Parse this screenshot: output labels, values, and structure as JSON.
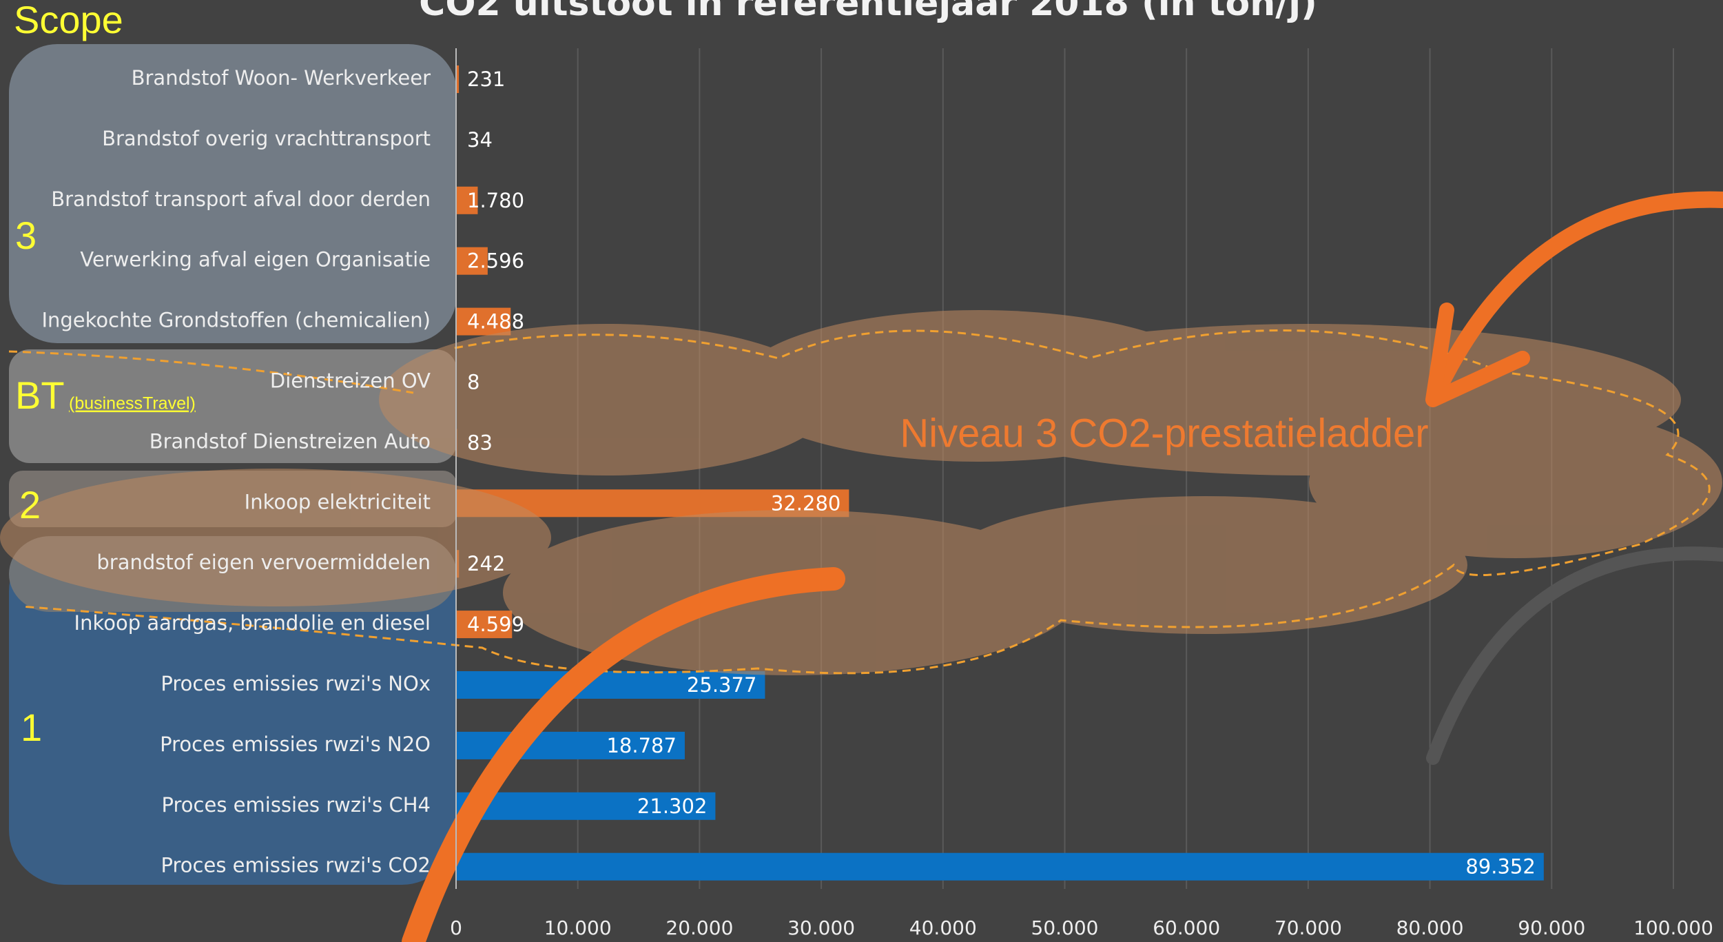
{
  "chart_data": {
    "type": "bar",
    "orientation": "horizontal",
    "title": "CO2 uitstoot in referentiejaar 2018 (in ton/j)",
    "categories": [
      "Brandstof Woon- Werkverkeer",
      "Brandstof overig vrachttransport",
      "Brandstof transport afval door derden",
      "Verwerking afval eigen Organisatie",
      "Ingekochte Grondstoffen (chemicalien)",
      "Dienstreizen OV",
      "Brandstof Dienstreizen Auto",
      "Inkoop elektriciteit",
      "brandstof eigen vervoermiddelen",
      "Inkoop aardgas, brandolie en diesel",
      "Proces emissies rwzi's NOx",
      "Proces emissies rwzi's N2O",
      "Proces emissies rwzi's CH4",
      "Proces emissies rwzi's CO2"
    ],
    "values": [
      231,
      34,
      1780,
      2596,
      4488,
      8,
      83,
      32280,
      242,
      4599,
      25377,
      18787,
      21302,
      89352
    ],
    "value_labels": [
      "231",
      "34",
      "1.780",
      "2.596",
      "4.488",
      "8",
      "83",
      "32.280",
      "242",
      "4.599",
      "25.377",
      "18.787",
      "21.302",
      "89.352"
    ],
    "colors": [
      "#e0702c",
      "#e0702c",
      "#e0702c",
      "#e0702c",
      "#e0702c",
      "#e0702c",
      "#e0702c",
      "#e0702c",
      "#e0702c",
      "#e0702c",
      "#0b72c4",
      "#0b72c4",
      "#0b72c4",
      "#0b72c4"
    ],
    "xlim": [
      0,
      100000
    ],
    "xticks": [
      0,
      {
        "value": 10000,
        "label": "10.000"
      },
      {
        "value": 20000,
        "label": "20.000"
      },
      {
        "value": 30000,
        "label": "30.000"
      },
      {
        "value": 40000,
        "label": "40.000"
      },
      {
        "value": 50000,
        "label": "50.000"
      },
      {
        "value": 60000,
        "label": "60.000"
      },
      {
        "value": 70000,
        "label": "70.000"
      },
      {
        "value": 80000,
        "label": "80.000"
      },
      {
        "value": 90000,
        "label": "90.000"
      },
      {
        "value": 100000,
        "label": "100.000"
      }
    ],
    "grid": true,
    "scope_label": "Scope",
    "groups": [
      {
        "label": "3"
      },
      {
        "label": "BT",
        "note": "(businessTravel)"
      },
      {
        "label": "2"
      },
      {
        "label": "1"
      }
    ],
    "annotation": "Niveau 3 CO2-prestatieladder"
  }
}
